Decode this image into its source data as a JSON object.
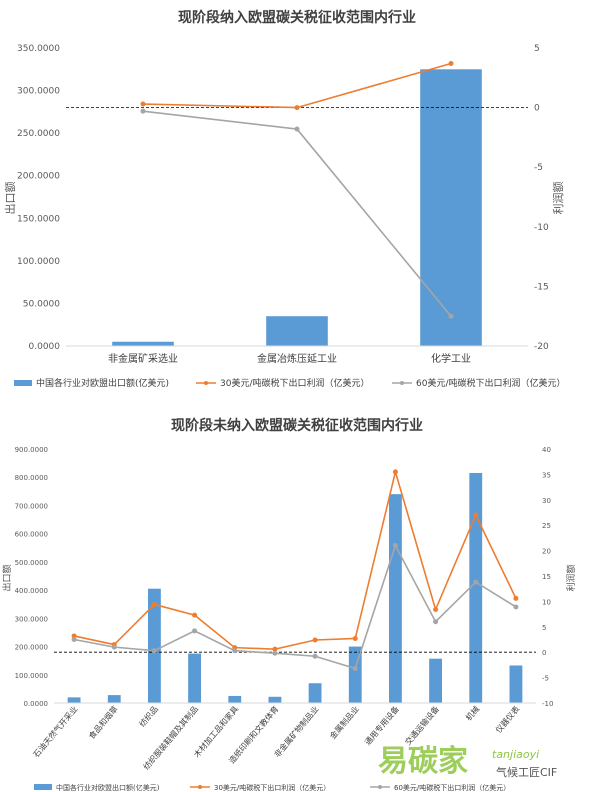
{
  "colors": {
    "bar": "#5b9bd5",
    "line30": "#ed7d31",
    "line60": "#a5a5a5"
  },
  "watermark": {
    "text": "易碳家",
    "site": "tanjiaoyi",
    "account": "气候工匠CIF"
  },
  "chart_data": [
    {
      "type": "bar+line",
      "title": "现阶段纳入欧盟碳关税征收范围内行业",
      "ylabel": "出口额",
      "y2label": "利润额",
      "ylim": [
        0,
        350
      ],
      "y2lim": [
        -20,
        5
      ],
      "yticks": [
        "0.0000",
        "50.0000",
        "100.0000",
        "150.0000",
        "200.0000",
        "250.0000",
        "300.0000",
        "350.0000"
      ],
      "y2ticks": [
        "-20",
        "-15",
        "-10",
        "-5",
        "0",
        "5"
      ],
      "categories": [
        "非金属矿采选业",
        "金属冶炼压延工业",
        "化学工业"
      ],
      "bar_series": {
        "name": "中国各行业对欧盟出口额(亿美元)",
        "values": [
          5,
          35,
          325
        ]
      },
      "line_series": [
        {
          "name": "30美元/吨碳税下出口利润（亿美元）",
          "values": [
            0.3,
            0.0,
            3.7
          ]
        },
        {
          "name": "60美元/吨碳税下出口利润（亿美元）",
          "values": [
            -0.3,
            -1.8,
            -17.5
          ]
        }
      ]
    },
    {
      "type": "bar+line",
      "title": "现阶段未纳入欧盟碳关税征收范围内行业",
      "ylabel": "出口额",
      "y2label": "利润额",
      "ylim": [
        0,
        900
      ],
      "y2lim": [
        -10,
        40
      ],
      "yticks": [
        "0.0000",
        "100.0000",
        "200.0000",
        "300.0000",
        "400.0000",
        "500.0000",
        "600.0000",
        "700.0000",
        "800.0000",
        "900.0000"
      ],
      "y2ticks": [
        "-10",
        "-5",
        "0",
        "5",
        "10",
        "15",
        "20",
        "25",
        "30",
        "35",
        "40"
      ],
      "categories": [
        "石油天然气开采业",
        "食品和烟草",
        "纺织品",
        "纺织服装鞋帽及其制品",
        "木材加工品和家具",
        "造纸印刷和文教体育",
        "非金属矿物制品业",
        "金属制品业",
        "通用专用设备",
        "交通运输设备",
        "机械",
        "仪器仪表"
      ],
      "bar_series": {
        "name": "中国各行业对欧盟出口额(亿美元)",
        "values": [
          20,
          28,
          405,
          175,
          25,
          22,
          70,
          200,
          740,
          157,
          815,
          133
        ]
      },
      "line_series": [
        {
          "name": "30美元/吨碳税下出口利润（亿美元）",
          "values": [
            3.2,
            1.5,
            9.4,
            7.3,
            0.9,
            0.6,
            2.4,
            2.7,
            35.5,
            8.4,
            27.0,
            10.6
          ]
        },
        {
          "name": "60美元/吨碳税下出口利润（亿美元）",
          "values": [
            2.5,
            1.0,
            0.3,
            4.2,
            0.3,
            -0.2,
            -0.8,
            -3.2,
            21.0,
            6.0,
            13.8,
            8.9
          ]
        }
      ]
    }
  ]
}
